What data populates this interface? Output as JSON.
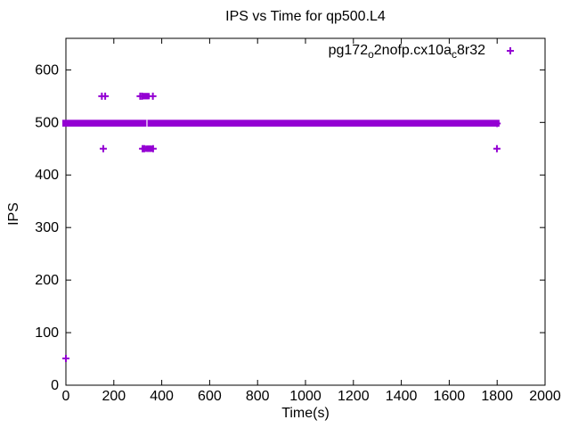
{
  "window": {
    "background": "#ffffff",
    "border_color": "#000000",
    "text_color": "#000000"
  },
  "chart_data": {
    "type": "scatter",
    "title": "IPS vs Time for qp500.L4",
    "xlabel": "Time(s)",
    "ylabel": "IPS",
    "xlim": [
      0,
      2000
    ],
    "ylim": [
      0,
      660
    ],
    "xticks": [
      0,
      200,
      400,
      600,
      800,
      1000,
      1200,
      1400,
      1600,
      1800,
      2000
    ],
    "yticks": [
      0,
      100,
      200,
      300,
      400,
      500,
      600
    ],
    "grid": false,
    "legend_position": "top-right-inside",
    "series": [
      {
        "name": "pg172_o2nofp.cx10a_c8r32",
        "label_segments": [
          {
            "text": "pg172",
            "sub": false
          },
          {
            "text": "o",
            "sub": true
          },
          {
            "text": "2nofp.cx10a",
            "sub": false
          },
          {
            "text": "c",
            "sub": true
          },
          {
            "text": "8r32",
            "sub": false
          }
        ],
        "color": "#9400d3",
        "marker": "plus",
        "steady_band": {
          "y_center": 498,
          "y_min": 492,
          "y_max": 505,
          "x_start": 0,
          "x_end": 1795,
          "gap_at_x": 336
        },
        "points_plus": [
          [
            0,
            51
          ],
          [
            150,
            550
          ],
          [
            164,
            550
          ],
          [
            310,
            550
          ],
          [
            318,
            550
          ],
          [
            363,
            550
          ],
          [
            156,
            450
          ],
          [
            320,
            450
          ],
          [
            327,
            450
          ],
          [
            364,
            450
          ],
          [
            1800,
            498
          ],
          [
            1799,
            450
          ]
        ],
        "points_square": [
          [
            331,
            550
          ],
          [
            337,
            550
          ],
          [
            344,
            450
          ],
          [
            350,
            450
          ]
        ]
      }
    ]
  }
}
